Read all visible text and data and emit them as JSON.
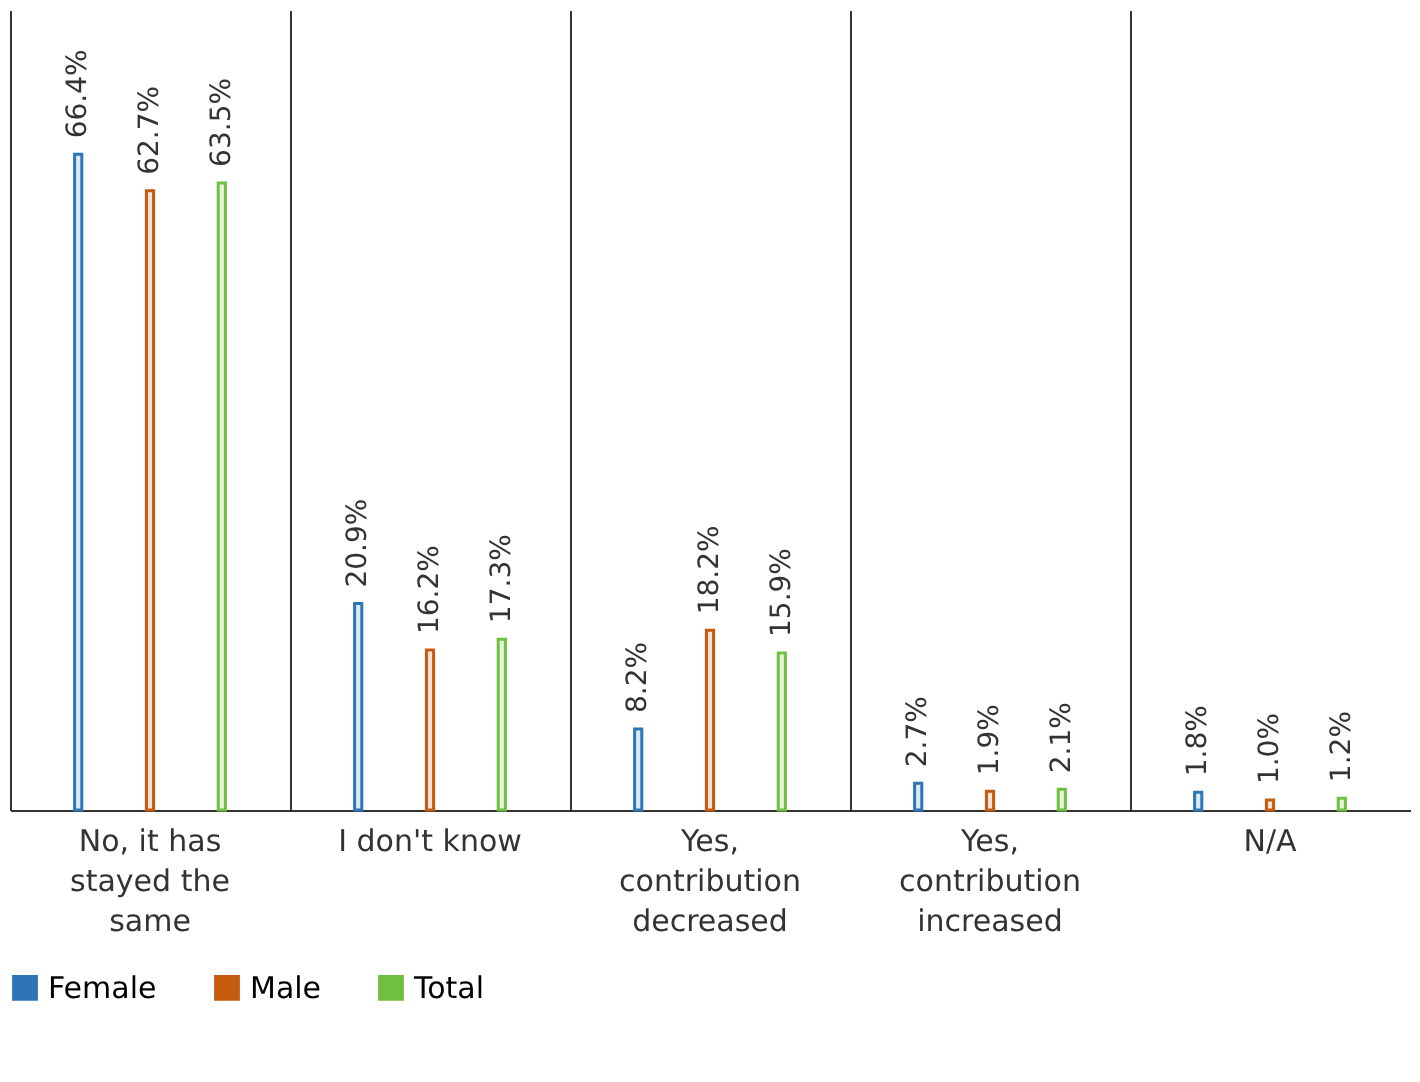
{
  "chart_data": {
    "type": "bar",
    "categories": [
      "No, it has stayed the same",
      "I don't know",
      "Yes, contribution decreased",
      "Yes, contribution increased",
      "N/A"
    ],
    "series": [
      {
        "name": "Female",
        "color": "#2e75b6",
        "values": [
          66.4,
          20.9,
          8.2,
          2.7,
          1.8
        ],
        "value_labels": [
          "66.4%",
          "20.9%",
          "8.2%",
          "2.7%",
          "1.8%"
        ]
      },
      {
        "name": "Male",
        "color": "#c55a11",
        "values": [
          62.7,
          16.2,
          18.2,
          1.9,
          1.0
        ],
        "value_labels": [
          "62.7%",
          "16.2%",
          "18.2%",
          "1.9%",
          "1.0%"
        ]
      },
      {
        "name": "Total",
        "color": "#70c040",
        "values": [
          63.5,
          17.3,
          15.9,
          2.1,
          1.2
        ],
        "value_labels": [
          "63.5%",
          "17.3%",
          "15.9%",
          "2.1%",
          "1.2%"
        ]
      }
    ],
    "grid": "x",
    "legend": "bottom"
  }
}
